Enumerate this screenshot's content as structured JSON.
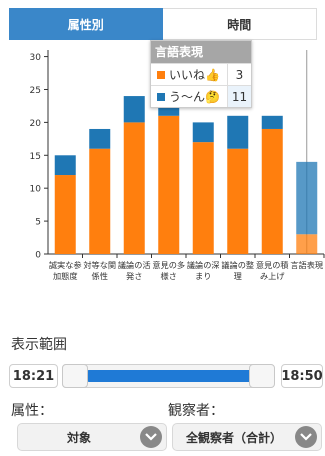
{
  "tabs": [
    {
      "label": "属性別",
      "active": true
    },
    {
      "label": "時間",
      "active": false
    }
  ],
  "chart_data": {
    "type": "bar",
    "stacked": true,
    "categories": [
      "誠実な参加態度",
      "対等な関係性",
      "議論の活発さ",
      "意見の多様さ",
      "議論の深まり",
      "議論の整理",
      "意見の積み上げ",
      "言語表現"
    ],
    "tick_labels": [
      [
        "誠実な参",
        "加態度"
      ],
      [
        "対等な関",
        "係性"
      ],
      [
        "議論の活",
        "発さ"
      ],
      [
        "意見の多",
        "様さ"
      ],
      [
        "議論の深",
        "まり"
      ],
      [
        "議論の整",
        "理"
      ],
      [
        "意見の積",
        "み上げ"
      ],
      [
        "言語表現",
        ""
      ]
    ],
    "series": [
      {
        "name": "いいね👍",
        "color": "#ff7f0e",
        "values": [
          12,
          16,
          20,
          21,
          17,
          16,
          19,
          3
        ]
      },
      {
        "name": "う〜ん🤔",
        "color": "#1f77b4",
        "values": [
          3,
          3,
          4,
          3,
          3,
          5,
          2,
          11
        ]
      }
    ],
    "highlighted_index": 7,
    "y_ticks": [
      0,
      5,
      10,
      15,
      20,
      25,
      30
    ],
    "ylim": [
      0,
      31
    ],
    "grid": false
  },
  "tooltip": {
    "title": "言語表現",
    "rows": [
      {
        "label": "いいね👍",
        "value": "3",
        "color": "#ff7f0e"
      },
      {
        "label": "う〜ん🤔",
        "value": "11",
        "color": "#1f77b4"
      }
    ]
  },
  "range": {
    "label": "表示範囲",
    "start": "18:21",
    "end": "18:50"
  },
  "filters": {
    "attribute_label": "属性：",
    "attribute_value": "対象",
    "observer_label": "観察者：",
    "observer_value": "全観察者（合計）"
  },
  "icons": {
    "chevron": "chevron-down-icon"
  }
}
